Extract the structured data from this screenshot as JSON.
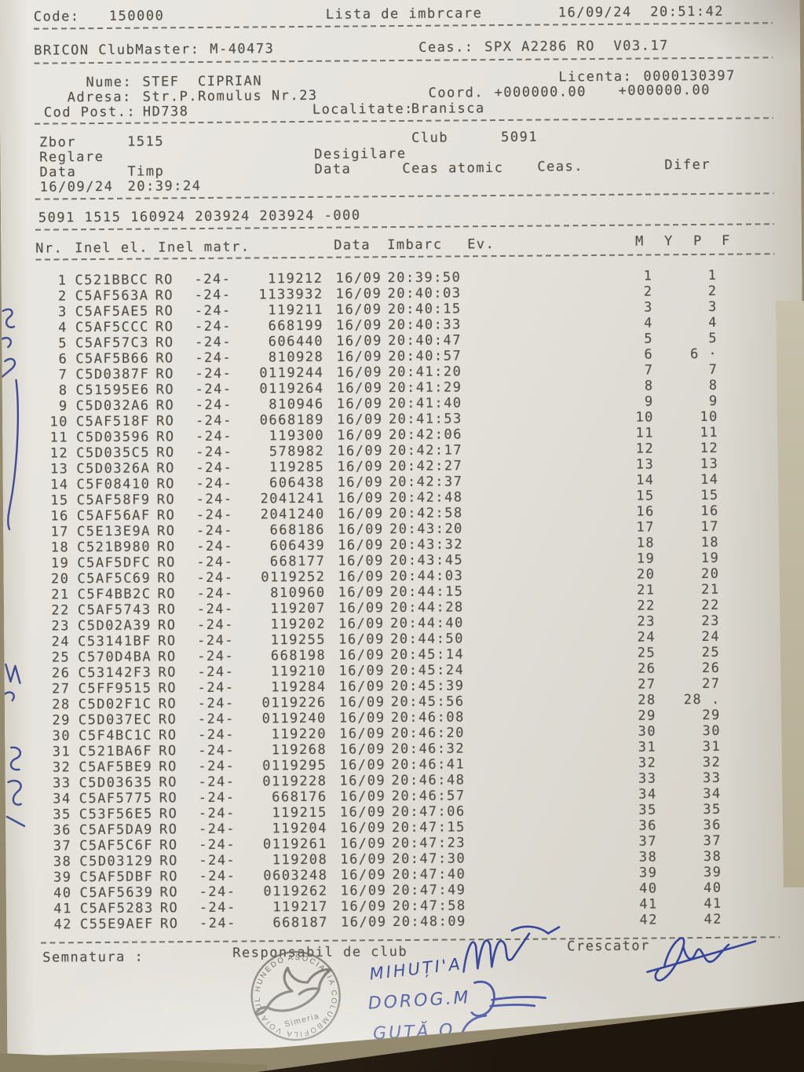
{
  "header": {
    "code_label": "Code:",
    "code_value": "150000",
    "title": "Lista de imbrcare",
    "printed_datetime": "16/09/24  20:51:42",
    "device_label": "BRICON ClubMaster:",
    "device_value": "M-40473",
    "clock_label": "Ceas.:",
    "clock_value": "SPX A2286 RO  V03.17"
  },
  "member": {
    "name_label": "Nume:",
    "name_value": "STEF  CIPRIAN",
    "license_label": "Licenta:",
    "license_value": "0000130397",
    "address_label": "Adresa:",
    "address_value": "Str.P.Romulus Nr.23",
    "coord_label": "Coord.",
    "coord_value_1": "+000000.00",
    "coord_value_2": "+000000.00",
    "postcode_label": "Cod Post.:",
    "postcode_value": "HD738",
    "locality_label": "Localitate:",
    "locality_value": "Branisca"
  },
  "flight": {
    "race_label": "Zbor",
    "race_value": "1515",
    "club_label": "Club",
    "club_value": "5091",
    "adjust_label": "Reglare",
    "unseal_label": "Desigilare",
    "date_label": "Data",
    "time_label": "Timp",
    "unseal_date_label": "Data",
    "atomic_clock_label": "Ceas atomic",
    "clock_label": "Ceas.",
    "diff_label": "Difer",
    "adjust_date": "16/09/24",
    "adjust_time": "20:39:24",
    "summary_line": "5091 1515 160924 203924 203924 -000"
  },
  "table": {
    "columns": [
      "Nr.",
      "Inel el.",
      "Inel matr.",
      "Data",
      "Imbarc",
      "Ev.",
      "M",
      "Y",
      "P",
      "F"
    ],
    "rows": [
      [
        "1",
        "C521BBCC",
        "RO",
        "-24-",
        "119212",
        "16/09",
        "20:39:50",
        "1",
        "1"
      ],
      [
        "2",
        "C5AF563A",
        "RO",
        "-24-",
        "1133932",
        "16/09",
        "20:40:03",
        "2",
        "2"
      ],
      [
        "3",
        "C5AF5AE5",
        "RO",
        "-24-",
        "119211",
        "16/09",
        "20:40:15",
        "3",
        "3"
      ],
      [
        "4",
        "C5AF5CCC",
        "RO",
        "-24-",
        "668199",
        "16/09",
        "20:40:33",
        "4",
        "4"
      ],
      [
        "5",
        "C5AF57C3",
        "RO",
        "-24-",
        "606440",
        "16/09",
        "20:40:47",
        "5",
        "5"
      ],
      [
        "6",
        "C5AF5B66",
        "RO",
        "-24-",
        "810928",
        "16/09",
        "20:40:57",
        "6",
        "6 ·"
      ],
      [
        "7",
        "C5D0387F",
        "RO",
        "-24-",
        "0119244",
        "16/09",
        "20:41:20",
        "7",
        "7"
      ],
      [
        "8",
        "C51595E6",
        "RO",
        "-24-",
        "0119264",
        "16/09",
        "20:41:29",
        "8",
        "8"
      ],
      [
        "9",
        "C5D032A6",
        "RO",
        "-24-",
        "810946",
        "16/09",
        "20:41:40",
        "9",
        "9"
      ],
      [
        "10",
        "C5AF518F",
        "RO",
        "-24-",
        "0668189",
        "16/09",
        "20:41:53",
        "10",
        "10"
      ],
      [
        "11",
        "C5D03596",
        "RO",
        "-24-",
        "119300",
        "16/09",
        "20:42:06",
        "11",
        "11"
      ],
      [
        "12",
        "C5D035C5",
        "RO",
        "-24-",
        "578982",
        "16/09",
        "20:42:17",
        "12",
        "12"
      ],
      [
        "13",
        "C5D0326A",
        "RO",
        "-24-",
        "119285",
        "16/09",
        "20:42:27",
        "13",
        "13"
      ],
      [
        "14",
        "C5F08410",
        "RO",
        "-24-",
        "606438",
        "16/09",
        "20:42:37",
        "14",
        "14"
      ],
      [
        "15",
        "C5AF58F9",
        "RO",
        "-24-",
        "2041241",
        "16/09",
        "20:42:48",
        "15",
        "15"
      ],
      [
        "16",
        "C5AF56AF",
        "RO",
        "-24-",
        "2041240",
        "16/09",
        "20:42:58",
        "16",
        "16"
      ],
      [
        "17",
        "C5E13E9A",
        "RO",
        "-24-",
        "668186",
        "16/09",
        "20:43:20",
        "17",
        "17"
      ],
      [
        "18",
        "C521B980",
        "RO",
        "-24-",
        "606439",
        "16/09",
        "20:43:32",
        "18",
        "18"
      ],
      [
        "19",
        "C5AF5DFC",
        "RO",
        "-24-",
        "668177",
        "16/09",
        "20:43:45",
        "19",
        "19"
      ],
      [
        "20",
        "C5AF5C69",
        "RO",
        "-24-",
        "0119252",
        "16/09",
        "20:44:03",
        "20",
        "20"
      ],
      [
        "21",
        "C5F4BB2C",
        "RO",
        "-24-",
        "810960",
        "16/09",
        "20:44:15",
        "21",
        "21"
      ],
      [
        "22",
        "C5AF5743",
        "RO",
        "-24-",
        "119207",
        "16/09",
        "20:44:28",
        "22",
        "22"
      ],
      [
        "23",
        "C5D02A39",
        "RO",
        "-24-",
        "119202",
        "16/09",
        "20:44:40",
        "23",
        "23"
      ],
      [
        "24",
        "C53141BF",
        "RO",
        "-24-",
        "119255",
        "16/09",
        "20:44:50",
        "24",
        "24"
      ],
      [
        "25",
        "C570D4BA",
        "RO",
        "-24-",
        "668198",
        "16/09",
        "20:45:14",
        "25",
        "25"
      ],
      [
        "26",
        "C53142F3",
        "RO",
        "-24-",
        "119210",
        "16/09",
        "20:45:24",
        "26",
        "26"
      ],
      [
        "27",
        "C5FF9515",
        "RO",
        "-24-",
        "119284",
        "16/09",
        "20:45:39",
        "27",
        "27"
      ],
      [
        "28",
        "C5D02F1C",
        "RO",
        "-24-",
        "0119226",
        "16/09",
        "20:45:56",
        "28",
        "28 ."
      ],
      [
        "29",
        "C5D037EC",
        "RO",
        "-24-",
        "0119240",
        "16/09",
        "20:46:08",
        "29",
        "29"
      ],
      [
        "30",
        "C5F4BC1C",
        "RO",
        "-24-",
        "119220",
        "16/09",
        "20:46:20",
        "30",
        "30"
      ],
      [
        "31",
        "C521BA6F",
        "RO",
        "-24-",
        "119268",
        "16/09",
        "20:46:32",
        "31",
        "31"
      ],
      [
        "32",
        "C5AF5BE9",
        "RO",
        "-24-",
        "0119295",
        "16/09",
        "20:46:41",
        "32",
        "32"
      ],
      [
        "33",
        "C5D03635",
        "RO",
        "-24-",
        "0119228",
        "16/09",
        "20:46:48",
        "33",
        "33"
      ],
      [
        "34",
        "C5AF5775",
        "RO",
        "-24-",
        "668176",
        "16/09",
        "20:46:57",
        "34",
        "34"
      ],
      [
        "35",
        "C53F56E5",
        "RO",
        "-24-",
        "119215",
        "16/09",
        "20:47:06",
        "35",
        "35"
      ],
      [
        "36",
        "C5AF5DA9",
        "RO",
        "-24-",
        "119204",
        "16/09",
        "20:47:15",
        "36",
        "36"
      ],
      [
        "37",
        "C5AF5C6F",
        "RO",
        "-24-",
        "0119261",
        "16/09",
        "20:47:23",
        "37",
        "37"
      ],
      [
        "38",
        "C5D03129",
        "RO",
        "-24-",
        "119208",
        "16/09",
        "20:47:30",
        "38",
        "38"
      ],
      [
        "39",
        "C5AF5DBF",
        "RO",
        "-24-",
        "0603248",
        "16/09",
        "20:47:40",
        "39",
        "39"
      ],
      [
        "40",
        "C5AF5639",
        "RO",
        "-24-",
        "0119262",
        "16/09",
        "20:47:49",
        "40",
        "40"
      ],
      [
        "41",
        "C5AF5283",
        "RO",
        "-24-",
        "119217",
        "16/09",
        "20:47:58",
        "41",
        "41"
      ],
      [
        "42",
        "C55E9AEF",
        "RO",
        "-24-",
        "668187",
        "16/09",
        "20:48:09",
        "42",
        "42"
      ]
    ]
  },
  "footer": {
    "signature_label": "Semnatura :",
    "club_official_label": "Responsabil de club",
    "breeder_label": "Crescator",
    "handwritten_names": [
      "MIHUȚI'A",
      "DOROG.M",
      "GUȚĂ.O"
    ],
    "stamp": {
      "ring_text": "ASOCIATIA COLUMBOFILA VOIAJUL HUNEDOAREAN",
      "bottom_text": "Simeria"
    }
  },
  "ink_color": "#35459c"
}
